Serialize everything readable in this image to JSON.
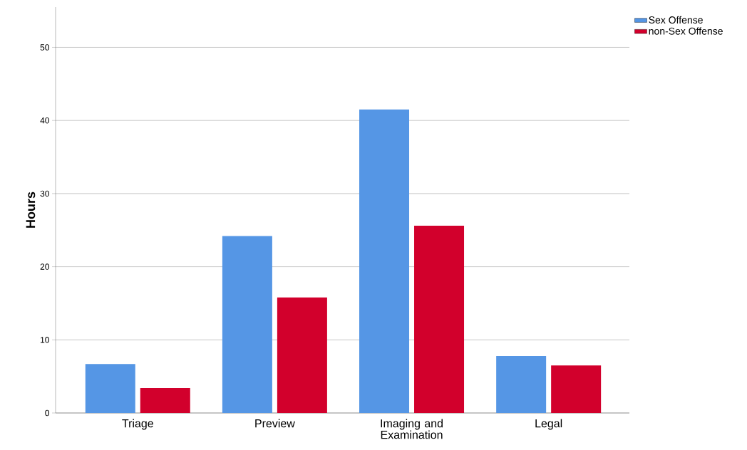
{
  "chart_data": {
    "type": "bar",
    "ylabel": "Hours",
    "categories": [
      "Triage",
      "Preview",
      "Imaging and Examination",
      "Legal"
    ],
    "series": [
      {
        "name": "Sex Offense",
        "color": "#5596e5",
        "values": [
          6.7,
          24.2,
          41.5,
          7.8
        ]
      },
      {
        "name": "non-Sex Offense",
        "color": "#d2002c",
        "values": [
          3.4,
          15.8,
          25.6,
          6.5
        ]
      }
    ],
    "ylim": [
      0,
      55.5
    ],
    "yticks": [
      0,
      10,
      20,
      30,
      40,
      50
    ],
    "grid": "y",
    "legend": "top right"
  }
}
